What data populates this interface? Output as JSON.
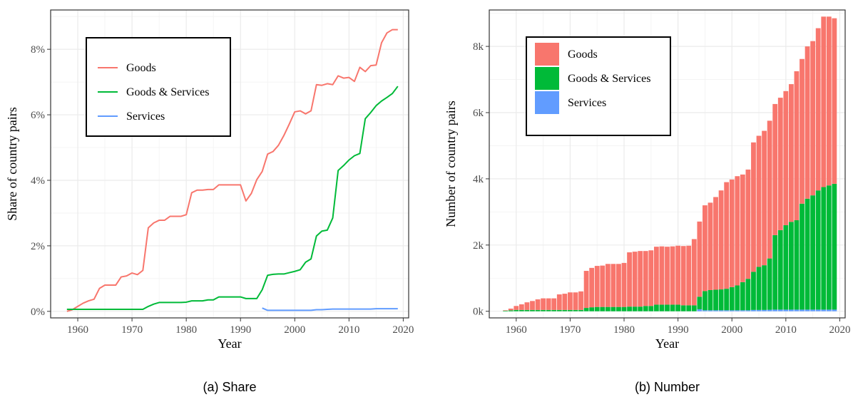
{
  "chart_data": [
    {
      "type": "line",
      "caption": "(a) Share",
      "xlabel": "Year",
      "ylabel": "Share of country pairs",
      "xlim": [
        1955,
        2021
      ],
      "ylim": [
        -0.2,
        9.2
      ],
      "x_ticks": [
        1960,
        1970,
        1980,
        1990,
        2000,
        2010,
        2020
      ],
      "x_tick_labels": [
        "1960",
        "1970",
        "1980",
        "1990",
        "2000",
        "2010",
        "2020"
      ],
      "y_ticks": [
        0,
        2,
        4,
        6,
        8
      ],
      "y_tick_labels": [
        "0%",
        "2%",
        "4%",
        "6%",
        "8%"
      ],
      "grid": true,
      "legend_position": "top-left",
      "series": [
        {
          "name": "Goods",
          "color": "#F8766D",
          "x": [
            1958,
            1959,
            1960,
            1961,
            1962,
            1963,
            1964,
            1965,
            1966,
            1967,
            1968,
            1969,
            1970,
            1971,
            1972,
            1973,
            1974,
            1975,
            1976,
            1977,
            1978,
            1979,
            1980,
            1981,
            1982,
            1983,
            1984,
            1985,
            1986,
            1987,
            1988,
            1989,
            1990,
            1991,
            1992,
            1993,
            1994,
            1995,
            1996,
            1997,
            1998,
            1999,
            2000,
            2001,
            2002,
            2003,
            2004,
            2005,
            2006,
            2007,
            2008,
            2009,
            2010,
            2011,
            2012,
            2013,
            2014,
            2015,
            2016,
            2017,
            2018,
            2019
          ],
          "values": [
            0.0,
            0.05,
            0.15,
            0.25,
            0.32,
            0.37,
            0.7,
            0.8,
            0.8,
            0.8,
            1.05,
            1.08,
            1.17,
            1.12,
            1.25,
            2.55,
            2.7,
            2.78,
            2.78,
            2.9,
            2.9,
            2.9,
            2.95,
            3.62,
            3.7,
            3.7,
            3.72,
            3.72,
            3.86,
            3.86,
            3.86,
            3.86,
            3.86,
            3.37,
            3.6,
            4.02,
            4.27,
            4.8,
            4.88,
            5.07,
            5.37,
            5.72,
            6.09,
            6.12,
            6.03,
            6.12,
            6.92,
            6.9,
            6.95,
            6.92,
            7.19,
            7.12,
            7.14,
            7.02,
            7.45,
            7.32,
            7.5,
            7.52,
            8.2,
            8.5,
            8.6,
            8.6
          ]
        },
        {
          "name": "Goods & Services",
          "color": "#00BA38",
          "x": [
            1958,
            1959,
            1960,
            1961,
            1962,
            1963,
            1964,
            1965,
            1966,
            1967,
            1968,
            1969,
            1970,
            1971,
            1972,
            1973,
            1974,
            1975,
            1976,
            1977,
            1978,
            1979,
            1980,
            1981,
            1982,
            1983,
            1984,
            1985,
            1986,
            1987,
            1988,
            1989,
            1990,
            1991,
            1992,
            1993,
            1994,
            1995,
            1996,
            1997,
            1998,
            1999,
            2000,
            2001,
            2002,
            2003,
            2004,
            2005,
            2006,
            2007,
            2008,
            2009,
            2010,
            2011,
            2012,
            2013,
            2014,
            2015,
            2016,
            2017,
            2018,
            2019
          ],
          "values": [
            0.06,
            0.06,
            0.06,
            0.06,
            0.06,
            0.06,
            0.06,
            0.06,
            0.06,
            0.06,
            0.06,
            0.06,
            0.06,
            0.06,
            0.06,
            0.15,
            0.22,
            0.27,
            0.27,
            0.27,
            0.27,
            0.27,
            0.28,
            0.32,
            0.32,
            0.32,
            0.35,
            0.35,
            0.44,
            0.44,
            0.44,
            0.44,
            0.44,
            0.39,
            0.39,
            0.39,
            0.66,
            1.1,
            1.13,
            1.14,
            1.14,
            1.18,
            1.22,
            1.27,
            1.5,
            1.6,
            2.3,
            2.45,
            2.48,
            2.85,
            4.3,
            4.45,
            4.62,
            4.75,
            4.82,
            5.88,
            6.07,
            6.28,
            6.42,
            6.53,
            6.65,
            6.87
          ]
        },
        {
          "name": "Services",
          "color": "#619CFF",
          "x": [
            1994,
            1995,
            1996,
            1997,
            1998,
            1999,
            2000,
            2001,
            2002,
            2003,
            2004,
            2005,
            2006,
            2007,
            2008,
            2009,
            2010,
            2011,
            2012,
            2013,
            2014,
            2015,
            2016,
            2017,
            2018,
            2019
          ],
          "values": [
            0.1,
            0.03,
            0.03,
            0.03,
            0.03,
            0.03,
            0.03,
            0.03,
            0.03,
            0.03,
            0.05,
            0.05,
            0.06,
            0.07,
            0.07,
            0.07,
            0.07,
            0.07,
            0.07,
            0.07,
            0.07,
            0.08,
            0.08,
            0.08,
            0.08,
            0.08
          ]
        }
      ]
    },
    {
      "type": "bar",
      "stacked": true,
      "caption": "(b) Number",
      "xlabel": "Year",
      "ylabel": "Number of country pairs",
      "xlim": [
        1955,
        2021
      ],
      "ylim": [
        -200,
        9100
      ],
      "x_ticks": [
        1960,
        1970,
        1980,
        1990,
        2000,
        2010,
        2020
      ],
      "x_tick_labels": [
        "1960",
        "1970",
        "1980",
        "1990",
        "2000",
        "2010",
        "2020"
      ],
      "y_ticks": [
        0,
        2000,
        4000,
        6000,
        8000
      ],
      "y_tick_labels": [
        "0k",
        "2k",
        "4k",
        "6k",
        "8k"
      ],
      "grid": true,
      "legend_position": "top-left",
      "x": [
        1958,
        1959,
        1960,
        1961,
        1962,
        1963,
        1964,
        1965,
        1966,
        1967,
        1968,
        1969,
        1970,
        1971,
        1972,
        1973,
        1974,
        1975,
        1976,
        1977,
        1978,
        1979,
        1980,
        1981,
        1982,
        1983,
        1984,
        1985,
        1986,
        1987,
        1988,
        1989,
        1990,
        1991,
        1992,
        1993,
        1994,
        1995,
        1996,
        1997,
        1998,
        1999,
        2000,
        2001,
        2002,
        2003,
        2004,
        2005,
        2006,
        2007,
        2008,
        2009,
        2010,
        2011,
        2012,
        2013,
        2014,
        2015,
        2016,
        2017,
        2018,
        2019
      ],
      "series": [
        {
          "name": "Services",
          "color": "#619CFF",
          "values": [
            0,
            0,
            0,
            0,
            0,
            0,
            0,
            0,
            0,
            0,
            0,
            0,
            0,
            0,
            0,
            0,
            0,
            0,
            0,
            0,
            0,
            0,
            0,
            0,
            0,
            0,
            0,
            0,
            0,
            0,
            0,
            0,
            0,
            0,
            0,
            0,
            60,
            30,
            30,
            30,
            30,
            30,
            30,
            30,
            30,
            30,
            40,
            40,
            40,
            45,
            50,
            50,
            50,
            50,
            50,
            50,
            50,
            50,
            50,
            50,
            50,
            50
          ]
        },
        {
          "name": "Goods & Services",
          "color": "#00BA38",
          "values": [
            20,
            30,
            40,
            40,
            40,
            40,
            40,
            40,
            40,
            40,
            40,
            40,
            40,
            40,
            40,
            100,
            120,
            130,
            130,
            130,
            130,
            130,
            130,
            140,
            140,
            140,
            160,
            160,
            200,
            200,
            200,
            200,
            200,
            180,
            180,
            180,
            380,
            580,
            610,
            620,
            630,
            650,
            700,
            750,
            850,
            950,
            1150,
            1300,
            1350,
            1550,
            2250,
            2400,
            2550,
            2650,
            2700,
            3200,
            3350,
            3450,
            3600,
            3700,
            3750,
            3800
          ]
        },
        {
          "name": "Goods",
          "color": "#F8766D",
          "values": [
            10,
            50,
            120,
            170,
            230,
            270,
            320,
            350,
            350,
            350,
            470,
            490,
            530,
            530,
            560,
            1120,
            1190,
            1240,
            1250,
            1300,
            1300,
            1300,
            1330,
            1640,
            1660,
            1680,
            1660,
            1680,
            1750,
            1760,
            1750,
            1760,
            1780,
            1790,
            1800,
            2000,
            2270,
            2590,
            2640,
            2800,
            2990,
            3220,
            3250,
            3300,
            3250,
            3300,
            3910,
            3960,
            4060,
            4160,
            3960,
            4000,
            4050,
            4160,
            4500,
            4370,
            4600,
            4660,
            4900,
            5150,
            5100,
            5000
          ]
        }
      ],
      "legend_order": [
        "Goods",
        "Goods & Services",
        "Services"
      ]
    }
  ]
}
